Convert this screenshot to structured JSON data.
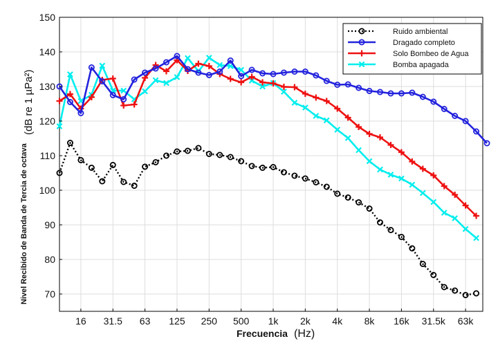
{
  "chart_data": {
    "type": "line",
    "xlabel_bold": "Frecuencia",
    "xlabel_unit": "(Hz)",
    "ylabel_bold": "Nivel Recibido de Banda de Tercia de octava",
    "ylabel_unit": "(dB re 1 µPa²)",
    "ylim": [
      65,
      150
    ],
    "yticks": [
      70,
      80,
      90,
      100,
      110,
      120,
      130,
      140,
      150
    ],
    "x_tick_labels": [
      "16",
      "31.5",
      "63",
      "125",
      "250",
      "500",
      "1k",
      "2k",
      "4k",
      "8k",
      "16k",
      "31.5k",
      "63k"
    ],
    "grid": true,
    "legend_position": "top-right",
    "series": [
      {
        "name": "Ruido ambiental",
        "color": "#000000",
        "marker": "circle",
        "dashed": true,
        "values": [
          105,
          113.7,
          108.7,
          106.5,
          102.6,
          107.3,
          102.4,
          101.3,
          106.8,
          108.1,
          110,
          111.2,
          111.4,
          112.2,
          110.5,
          110.2,
          109.6,
          108.4,
          107,
          106.5,
          106.7,
          105.2,
          104.2,
          103.4,
          102.3,
          101,
          99,
          97.9,
          96.5,
          94.7,
          90.7,
          88.5,
          86.5,
          83.2,
          78.7,
          75.5,
          72,
          71,
          69.7,
          70.2
        ]
      },
      {
        "name": "Dragado  completo",
        "color": "#2222dd",
        "marker": "circle",
        "dashed": false,
        "values": [
          130,
          125.5,
          122.3,
          135.5,
          131.5,
          127.5,
          126.3,
          132,
          134,
          135.2,
          137,
          138.8,
          135,
          134,
          133.3,
          134.3,
          137.5,
          133,
          134.8,
          133.8,
          133.6,
          134,
          134.3,
          134.3,
          133.2,
          131.6,
          130.5,
          130.6,
          129.6,
          128.7,
          128.4,
          128,
          128,
          128.2,
          127,
          125.6,
          123.5,
          121.5,
          120,
          117,
          113.6
        ]
      },
      {
        "name": "Solo Bombeo de Agua",
        "color": "#ee1111",
        "marker": "plus",
        "dashed": false,
        "values": [
          125.8,
          127.8,
          123.6,
          126.9,
          131.9,
          132.3,
          124.5,
          124.8,
          132.5,
          136.2,
          134.4,
          137.6,
          134.5,
          136.6,
          135.9,
          133.6,
          132.2,
          131.2,
          132.8,
          131.2,
          130.9,
          129.9,
          129.8,
          127.9,
          126.8,
          125.8,
          123.6,
          121,
          118.3,
          116.3,
          115.3,
          113.1,
          111,
          108.3,
          106.2,
          104.3,
          101.2,
          98.7,
          95.6,
          92.6
        ]
      },
      {
        "name": "Bomba apagada",
        "color": "#00eeee",
        "marker": "x",
        "dashed": false,
        "values": [
          118.5,
          133.5,
          125.8,
          127.6,
          136,
          128.8,
          128.8,
          126.3,
          128.6,
          131.8,
          131,
          132.7,
          138.2,
          134.4,
          138.3,
          136.2,
          135.9,
          134.8,
          131.7,
          130,
          131,
          128.5,
          125.3,
          123.9,
          121.5,
          120.2,
          117.5,
          115.1,
          111.6,
          108.4,
          106,
          104.5,
          103.4,
          101.6,
          99.2,
          96.6,
          93.5,
          91.9,
          88.8,
          86.2
        ]
      }
    ]
  }
}
